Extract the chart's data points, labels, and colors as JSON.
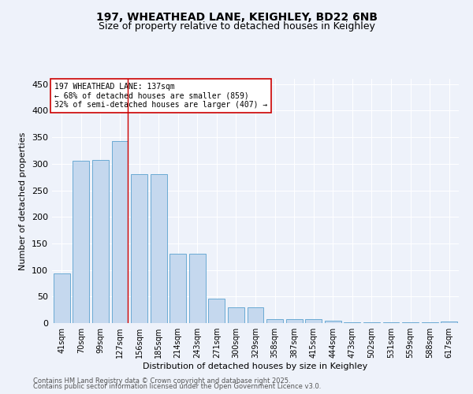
{
  "title": "197, WHEATHEAD LANE, KEIGHLEY, BD22 6NB",
  "subtitle": "Size of property relative to detached houses in Keighley",
  "xlabel": "Distribution of detached houses by size in Keighley",
  "ylabel": "Number of detached properties",
  "categories": [
    "41sqm",
    "70sqm",
    "99sqm",
    "127sqm",
    "156sqm",
    "185sqm",
    "214sqm",
    "243sqm",
    "271sqm",
    "300sqm",
    "329sqm",
    "358sqm",
    "387sqm",
    "415sqm",
    "444sqm",
    "473sqm",
    "502sqm",
    "531sqm",
    "559sqm",
    "588sqm",
    "617sqm"
  ],
  "values": [
    93,
    305,
    307,
    343,
    280,
    280,
    131,
    131,
    46,
    30,
    30,
    8,
    8,
    7,
    5,
    2,
    2,
    1,
    1,
    1,
    3
  ],
  "bar_color": "#c5d8ee",
  "bar_edge_color": "#6aaad4",
  "background_color": "#eef2fa",
  "grid_color": "#ffffff",
  "vline_x_idx": 3,
  "vline_color": "#cc0000",
  "annotation_text": "197 WHEATHEAD LANE: 137sqm\n← 68% of detached houses are smaller (859)\n32% of semi-detached houses are larger (407) →",
  "annotation_box_edge_color": "#cc0000",
  "ylim": [
    0,
    460
  ],
  "yticks": [
    0,
    50,
    100,
    150,
    200,
    250,
    300,
    350,
    400,
    450
  ],
  "title_fontsize": 10,
  "subtitle_fontsize": 9,
  "xlabel_fontsize": 8,
  "ylabel_fontsize": 8,
  "xtick_fontsize": 7,
  "ytick_fontsize": 8,
  "annotation_fontsize": 7,
  "footnote1": "Contains HM Land Registry data © Crown copyright and database right 2025.",
  "footnote2": "Contains public sector information licensed under the Open Government Licence v3.0.",
  "footnote_fontsize": 6,
  "footnote_color": "#555555"
}
